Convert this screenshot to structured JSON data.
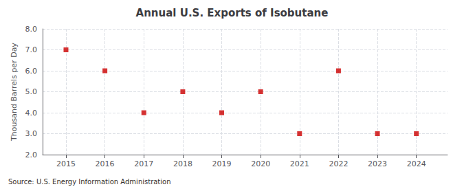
{
  "chart_data": {
    "type": "scatter",
    "title": "Annual U.S. Exports of Isobutane",
    "ylabel": "Thousand Barrels per Day",
    "annotation": "Source: U.S. Energy Information Administration",
    "x": [
      2015,
      2016,
      2017,
      2018,
      2019,
      2020,
      2021,
      2022,
      2023,
      2024
    ],
    "values": [
      7.0,
      6.0,
      4.0,
      5.0,
      4.0,
      5.0,
      3.0,
      6.0,
      3.0,
      3.0
    ],
    "color": "#cc0000",
    "marker": "square",
    "xlim": [
      2014.4,
      2024.8
    ],
    "xticks": [
      2015,
      2016,
      2017,
      2018,
      2019,
      2020,
      2021,
      2022,
      2023,
      2024
    ],
    "ylim": [
      2.0,
      8.0
    ],
    "yticks": [
      {
        "value": 2.0,
        "label": "2.0"
      },
      {
        "value": 3.0,
        "label": "3.0"
      },
      {
        "value": 4.0,
        "label": "4.0"
      },
      {
        "value": 5.0,
        "label": "5.0"
      },
      {
        "value": 6.0,
        "label": "6.0"
      },
      {
        "value": 7.0,
        "label": "7.0"
      },
      {
        "value": 8.0,
        "label": "8.0"
      }
    ],
    "grid": true
  }
}
